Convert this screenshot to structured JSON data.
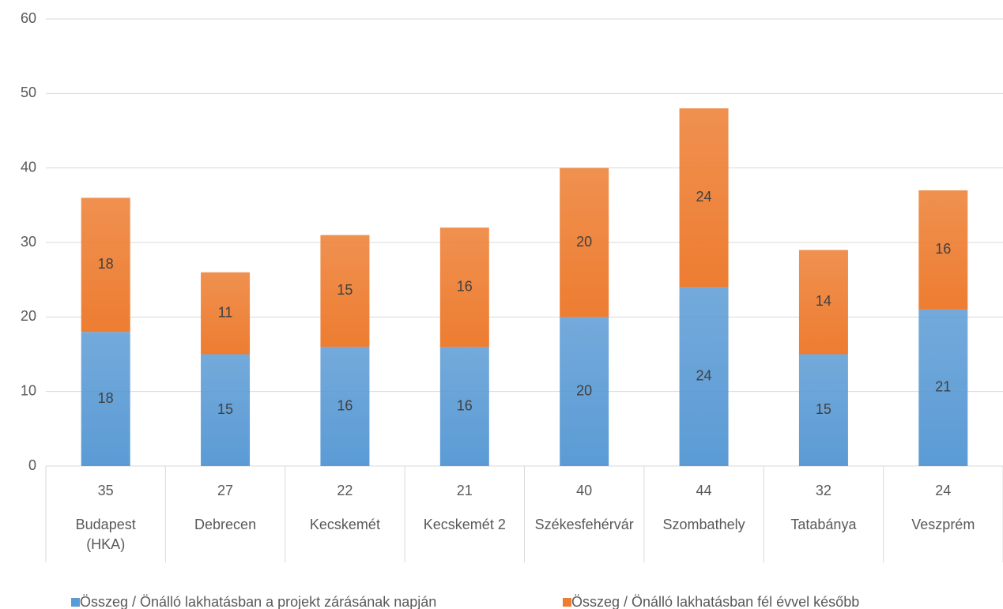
{
  "chart_data": {
    "type": "stacked_bar",
    "categories": [
      "Budapest (HKA)",
      "Debrecen",
      "Kecskemét",
      "Kecskemét 2",
      "Székesfehérvár",
      "Szombathely",
      "Tatabánya",
      "Veszprém"
    ],
    "category_codes": [
      35,
      27,
      22,
      21,
      40,
      44,
      32,
      24
    ],
    "series": [
      {
        "name": "Összeg / Önálló lakhatásban a projekt zárásának napján",
        "color": "#5b9bd5",
        "values": [
          18,
          15,
          16,
          16,
          20,
          24,
          15,
          21
        ]
      },
      {
        "name": "Összeg / Önálló lakhatásban fél évvel később",
        "color": "#ed7d31",
        "values": [
          18,
          11,
          15,
          16,
          20,
          24,
          14,
          16
        ]
      }
    ],
    "ylim": [
      0,
      60
    ],
    "yticks": [
      0,
      10,
      20,
      30,
      40,
      50,
      60
    ],
    "grid": true,
    "legend": "bottom"
  }
}
